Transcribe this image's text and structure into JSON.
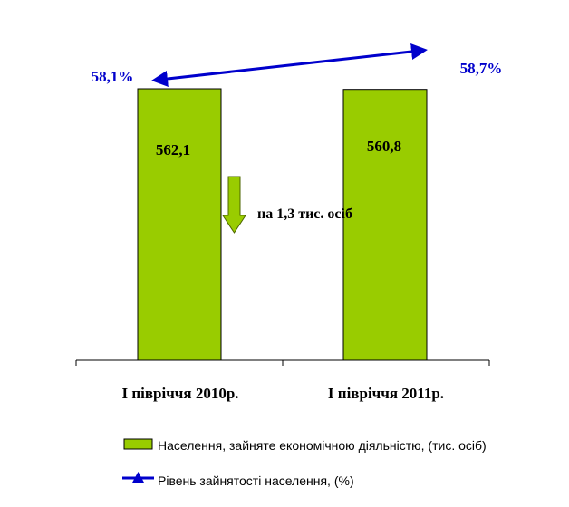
{
  "chart_data": {
    "type": "bar",
    "categories": [
      "І півріччя 2010р.",
      "І півріччя 2011р."
    ],
    "series": [
      {
        "name": "Населення, зайняте економічною діяльністю, (тис. осіб)",
        "values": [
          562.1,
          560.8
        ],
        "value_labels": [
          "562,1",
          "560,8"
        ],
        "color": "#99cc00"
      },
      {
        "name": "Рівень зайнятості населення, (%)",
        "values": [
          58.1,
          58.7
        ],
        "value_labels": [
          "58,1%",
          "58,7%"
        ],
        "color": "#0000cc"
      }
    ],
    "annotation": "на 1,3 тис. осіб",
    "arrow_color": "#99cc00",
    "title": "",
    "xlabel": "",
    "ylabel": "",
    "ylim": [
      0,
      600
    ],
    "grid": false,
    "legend_position": "bottom"
  }
}
